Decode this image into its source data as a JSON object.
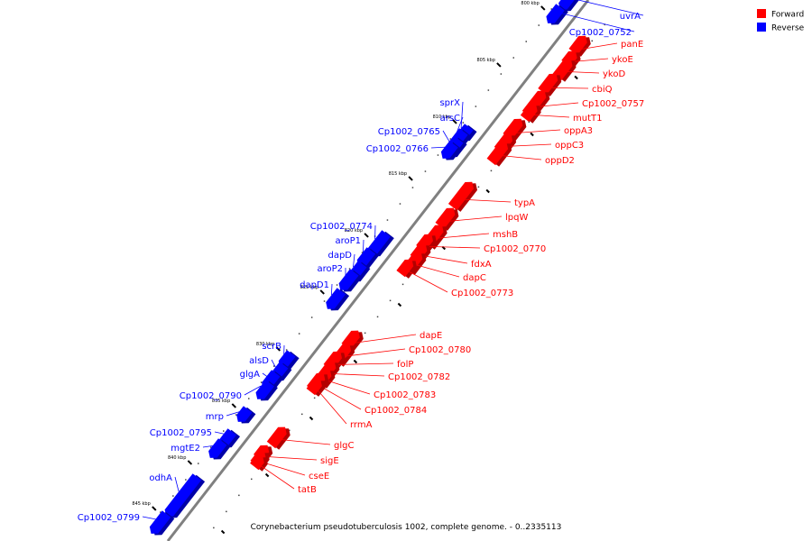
{
  "caption": "Corynebacterium pseudotuberculosis 1002, complete genome. - 0..2335113",
  "colors": {
    "forward": "#ff0000",
    "reverse": "#0000ff",
    "backbone": "#808080"
  },
  "legend": [
    {
      "label": "Forward",
      "strand": "forward"
    },
    {
      "label": "Reverse",
      "strand": "reverse"
    }
  ],
  "scale_labels": [
    "800 kbp",
    "805 kbp",
    "810 kbp",
    "815 kbp",
    "820 kbp",
    "825 kbp",
    "830 kbp",
    "835 kbp",
    "840 kbp",
    "845 kbp"
  ],
  "forward_genes": [
    "panE",
    "ykoE",
    "ykoD",
    "cbiQ",
    "Cp1002_0757",
    "mutT1",
    "oppA3",
    "oppC3",
    "oppD2",
    "typA",
    "lpqW",
    "mshB",
    "Cp1002_0770",
    "fdxA",
    "dapC",
    "Cp1002_0773",
    "dapE",
    "Cp1002_0780",
    "folP",
    "Cp1002_0782",
    "Cp1002_0783",
    "Cp1002_0784",
    "rrmA",
    "glgC",
    "sigE",
    "cseE",
    "tatB"
  ],
  "reverse_genes": [
    "uvrA",
    "Cp1002_0752",
    "sprX",
    "arsC",
    "Cp1002_0765",
    "Cp1002_0766",
    "Cp1002_0774",
    "aroP1",
    "dapD",
    "aroP2",
    "dapD1",
    "scrB",
    "alsD",
    "glgA",
    "Cp1002_0790",
    "mrp",
    "Cp1002_0795",
    "mgtE2",
    "odhA",
    "Cp1002_0799"
  ]
}
